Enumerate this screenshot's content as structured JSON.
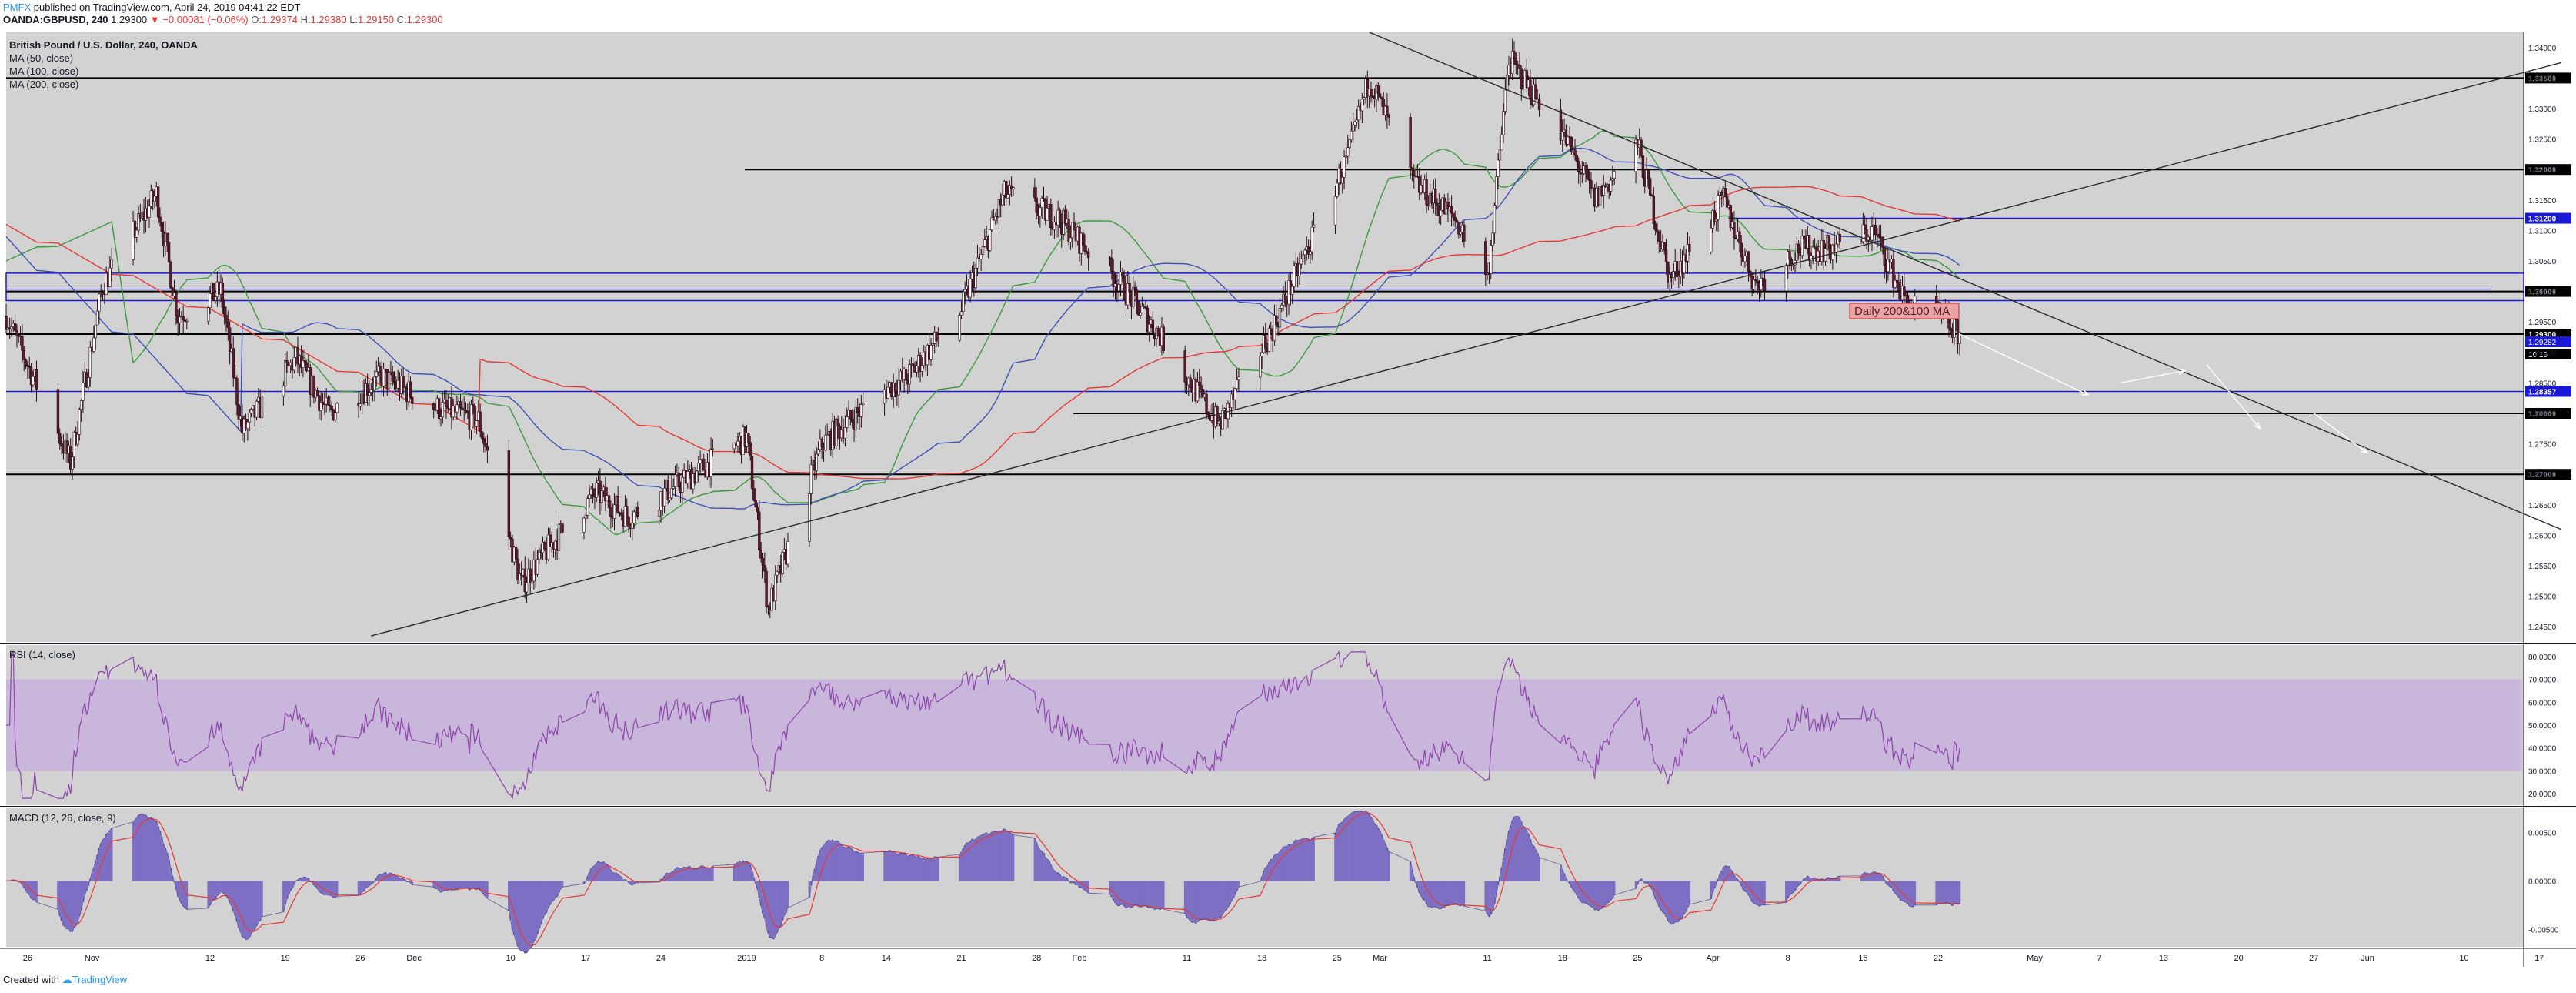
{
  "header": {
    "author": "PMFX",
    "published": "published on TradingView.com, April 24, 2019 04:41:22 EDT",
    "symbol": "OANDA:GBPUSD, 240",
    "last": "1.29300",
    "change": "−0.00081 (−0.06%)",
    "o_label": "O:",
    "o": "1.29374",
    "h_label": "H:",
    "h": "1.29380",
    "l_label": "L:",
    "l": "1.29150",
    "c_label": "C:",
    "c": "1.29300"
  },
  "legend": {
    "title": "British Pound / U.S. Dollar, 240, OANDA",
    "ma50": "MA (50, close)",
    "ma100": "MA (100, close)",
    "ma200": "MA (200, close)"
  },
  "rsi_label": "RSI (14, close)",
  "macd_label": "MACD (12, 26, close, 9)",
  "annotation": "Daily 200&100 MA",
  "footer": {
    "prefix": "Created with",
    "brand": "TradingView"
  },
  "colors": {
    "background": "#d2d2d2",
    "candle_up": "#ffffff",
    "candle_down": "#5d1a2a",
    "ma50": "#3c9a3c",
    "ma100": "#3f51b5",
    "ma200": "#e53935",
    "rsi": "#8e44ad",
    "rsi_band": "#c6b0dc",
    "macd_hist": "#7d6fc4",
    "macd_signal": "#e53935",
    "level_black": "#000000",
    "level_blue": "#1a1ad6"
  },
  "chart_data": {
    "type": "candlestick",
    "pair": "GBPUSD",
    "timeframe": "240",
    "price_axis_ticks": [
      "1.34000",
      "1.33500",
      "1.33000",
      "1.32500",
      "1.32000",
      "1.31500",
      "1.31000",
      "1.30500",
      "1.30000",
      "1.29500",
      "1.29000",
      "1.28500",
      "1.28000",
      "1.27500",
      "1.27000",
      "1.26500",
      "1.26000",
      "1.25500",
      "1.25000",
      "1.24500"
    ],
    "price_axis_range": [
      1.2425,
      1.3425
    ],
    "time_axis_labels": [
      "26",
      "Nov",
      "12",
      "19",
      "26",
      "Dec",
      "10",
      "17",
      "24",
      "2019",
      "8",
      "14",
      "21",
      "28",
      "Feb",
      "11",
      "18",
      "25",
      "Mar",
      "11",
      "18",
      "25",
      "Apr",
      "8",
      "15",
      "22",
      "May",
      "7",
      "13",
      "20",
      "27",
      "Jun",
      "10",
      "17"
    ],
    "horizontal_levels": [
      {
        "price": 1.335,
        "label": "1.33500",
        "color": "black"
      },
      {
        "price": 1.32,
        "label": "1.32000",
        "color": "black"
      },
      {
        "price": 1.312,
        "label": "1.31200",
        "color": "blue"
      },
      {
        "price": 1.3,
        "label": "1.30000",
        "color": "black"
      },
      {
        "price": 1.293,
        "label": "1.29300",
        "color": "black",
        "kind": "last"
      },
      {
        "price": 1.2836,
        "label": "1.28357",
        "color": "blue"
      },
      {
        "price": 1.28,
        "label": "1.28000",
        "color": "black"
      },
      {
        "price": 1.27,
        "label": "1.27000",
        "color": "black"
      }
    ],
    "extra_axis_labels": [
      "1.29282",
      "10:19"
    ],
    "zones": [
      {
        "from": 1.2985,
        "to": 1.303,
        "color": "blue"
      }
    ],
    "trendlines": [
      {
        "name": "ascending support",
        "from": {
          "date": "2018-11-27",
          "price": 1.2435
        },
        "to": {
          "date": "2019-06-19",
          "price": 1.3375
        }
      },
      {
        "name": "descending resistance",
        "from": {
          "date": "2019-02-28",
          "price": 1.3425
        },
        "to": {
          "date": "2019-06-19",
          "price": 1.261
        }
      }
    ],
    "rsi": {
      "ticks": [
        "80.0000",
        "70.0000",
        "60.0000",
        "50.0000",
        "40.0000",
        "30.0000",
        "20.0000"
      ],
      "range": [
        15,
        85
      ],
      "band": [
        30,
        70
      ]
    },
    "macd": {
      "ticks": [
        "0.00500",
        "0.00000",
        "-0.00500"
      ],
      "range": [
        -0.0068,
        0.0075
      ]
    }
  }
}
